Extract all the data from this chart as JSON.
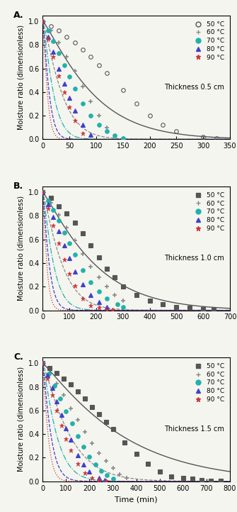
{
  "panels": [
    {
      "label": "A.",
      "thickness": "Thickness 0.5 cm",
      "xlim": [
        0,
        350
      ],
      "xticks": [
        0,
        50,
        100,
        150,
        200,
        250,
        300,
        350
      ],
      "temps": [
        {
          "label": "50 °C",
          "color": "#555555",
          "marker": "o",
          "marker_fill": "none",
          "linestyle": "-",
          "k": 0.0045,
          "n": 1.18,
          "data_t": [
            0,
            15,
            30,
            45,
            60,
            75,
            90,
            105,
            120,
            150,
            175,
            200,
            225,
            250,
            300,
            325
          ],
          "data_mr": [
            1.0,
            0.96,
            0.92,
            0.87,
            0.82,
            0.76,
            0.7,
            0.63,
            0.56,
            0.42,
            0.3,
            0.2,
            0.12,
            0.07,
            0.02,
            0.01
          ]
        },
        {
          "label": "60 °C",
          "color": "#888888",
          "marker": "+",
          "marker_fill": "none",
          "linestyle": "--",
          "k": 0.012,
          "n": 1.22,
          "data_t": [
            0,
            15,
            30,
            45,
            60,
            75,
            90,
            105,
            120
          ],
          "data_mr": [
            1.0,
            0.92,
            0.82,
            0.7,
            0.58,
            0.45,
            0.32,
            0.2,
            0.1
          ]
        },
        {
          "label": "70 °C",
          "color": "#20B2AA",
          "marker": "o",
          "marker_fill": "#20B2AA",
          "linestyle": "-.",
          "k": 0.022,
          "n": 1.25,
          "data_t": [
            0,
            10,
            20,
            30,
            40,
            50,
            60,
            75,
            90,
            105,
            120,
            135,
            150
          ],
          "data_mr": [
            1.0,
            0.92,
            0.83,
            0.73,
            0.63,
            0.53,
            0.43,
            0.3,
            0.2,
            0.12,
            0.07,
            0.03,
            0.01
          ]
        },
        {
          "label": "80 °C",
          "color": "#4040CC",
          "marker": "^",
          "marker_fill": "#4040CC",
          "linestyle": "--",
          "k": 0.038,
          "n": 1.28,
          "data_t": [
            0,
            10,
            20,
            30,
            40,
            50,
            60,
            75,
            90
          ],
          "data_mr": [
            1.0,
            0.87,
            0.74,
            0.6,
            0.47,
            0.35,
            0.24,
            0.12,
            0.04
          ]
        },
        {
          "label": "90 °C",
          "color": "#CC3333",
          "marker": "*",
          "marker_fill": "#CC3333",
          "linestyle": ":",
          "k": 0.055,
          "n": 1.3,
          "data_t": [
            0,
            10,
            20,
            30,
            40,
            50,
            60,
            75
          ],
          "data_mr": [
            1.0,
            0.85,
            0.7,
            0.54,
            0.4,
            0.27,
            0.16,
            0.05
          ]
        }
      ]
    },
    {
      "label": "B.",
      "thickness": "Thickness 1.0 cm",
      "xlim": [
        0,
        700
      ],
      "xticks": [
        0,
        100,
        200,
        300,
        400,
        500,
        600,
        700
      ],
      "temps": [
        {
          "label": "50 °C",
          "color": "#555555",
          "marker": "s",
          "marker_fill": "#555555",
          "linestyle": "-",
          "k": 0.0022,
          "n": 1.15,
          "data_t": [
            0,
            30,
            60,
            90,
            120,
            150,
            180,
            210,
            240,
            270,
            300,
            350,
            400,
            450,
            500,
            550,
            600,
            640
          ],
          "data_mr": [
            1.0,
            0.95,
            0.88,
            0.82,
            0.74,
            0.65,
            0.55,
            0.45,
            0.35,
            0.28,
            0.2,
            0.13,
            0.08,
            0.05,
            0.03,
            0.02,
            0.01,
            0.005
          ]
        },
        {
          "label": "60 °C",
          "color": "#888888",
          "marker": "+",
          "marker_fill": "none",
          "linestyle": "--",
          "k": 0.006,
          "n": 1.18,
          "data_t": [
            0,
            30,
            60,
            90,
            120,
            150,
            180,
            210,
            240,
            270,
            300
          ],
          "data_mr": [
            1.0,
            0.91,
            0.81,
            0.7,
            0.59,
            0.48,
            0.37,
            0.28,
            0.2,
            0.13,
            0.08
          ]
        },
        {
          "label": "70 °C",
          "color": "#20B2AA",
          "marker": "o",
          "marker_fill": "#20B2AA",
          "linestyle": "-.",
          "k": 0.011,
          "n": 1.2,
          "data_t": [
            0,
            20,
            40,
            60,
            80,
            100,
            120,
            150,
            180,
            210,
            240,
            280,
            300
          ],
          "data_mr": [
            1.0,
            0.93,
            0.85,
            0.76,
            0.66,
            0.57,
            0.47,
            0.34,
            0.24,
            0.16,
            0.1,
            0.05,
            0.03
          ]
        },
        {
          "label": "80 °C",
          "color": "#4040CC",
          "marker": "^",
          "marker_fill": "#4040CC",
          "linestyle": "--",
          "k": 0.019,
          "n": 1.22,
          "data_t": [
            0,
            20,
            40,
            60,
            80,
            100,
            120,
            150,
            180,
            210,
            240
          ],
          "data_mr": [
            1.0,
            0.9,
            0.79,
            0.67,
            0.55,
            0.44,
            0.33,
            0.22,
            0.13,
            0.07,
            0.03
          ]
        },
        {
          "label": "90 °C",
          "color": "#CC3333",
          "marker": "*",
          "marker_fill": "#CC3333",
          "linestyle": ":",
          "k": 0.03,
          "n": 1.25,
          "data_t": [
            0,
            20,
            40,
            60,
            80,
            100,
            120,
            150,
            180,
            210,
            240,
            260
          ],
          "data_mr": [
            1.0,
            0.86,
            0.72,
            0.57,
            0.43,
            0.31,
            0.21,
            0.1,
            0.04,
            0.02,
            0.005,
            0.002
          ]
        }
      ]
    },
    {
      "label": "C.",
      "thickness": "Thickness 1.5 cm",
      "xlim": [
        0,
        800
      ],
      "xticks": [
        0,
        100,
        200,
        300,
        400,
        500,
        600,
        700,
        800
      ],
      "temps": [
        {
          "label": "50 °C",
          "color": "#555555",
          "marker": "s",
          "marker_fill": "#555555",
          "linestyle": "-",
          "k": 0.0014,
          "n": 1.12,
          "data_t": [
            0,
            30,
            60,
            90,
            120,
            150,
            180,
            210,
            240,
            270,
            300,
            350,
            400,
            450,
            500,
            550,
            600,
            640,
            680,
            720,
            760
          ],
          "data_mr": [
            1.0,
            0.96,
            0.92,
            0.87,
            0.82,
            0.76,
            0.7,
            0.63,
            0.57,
            0.5,
            0.44,
            0.33,
            0.23,
            0.15,
            0.08,
            0.04,
            0.03,
            0.02,
            0.01,
            0.005,
            0.002
          ]
        },
        {
          "label": "60 °C",
          "color": "#888888",
          "marker": "+",
          "marker_fill": "none",
          "linestyle": "--",
          "k": 0.004,
          "n": 1.15,
          "data_t": [
            0,
            30,
            60,
            90,
            120,
            150,
            180,
            210,
            240,
            270,
            300,
            330,
            360
          ],
          "data_mr": [
            1.0,
            0.92,
            0.83,
            0.73,
            0.62,
            0.52,
            0.42,
            0.32,
            0.24,
            0.17,
            0.11,
            0.06,
            0.03
          ]
        },
        {
          "label": "70 °C",
          "color": "#20B2AA",
          "marker": "o",
          "marker_fill": "#20B2AA",
          "linestyle": "-.",
          "k": 0.0075,
          "n": 1.18,
          "data_t": [
            0,
            25,
            50,
            75,
            100,
            125,
            150,
            175,
            200,
            225,
            250,
            275,
            300
          ],
          "data_mr": [
            1.0,
            0.91,
            0.81,
            0.7,
            0.59,
            0.49,
            0.38,
            0.29,
            0.21,
            0.14,
            0.09,
            0.05,
            0.02
          ]
        },
        {
          "label": "80 °C",
          "color": "#4040CC",
          "marker": "^",
          "marker_fill": "#4040CC",
          "linestyle": "--",
          "k": 0.013,
          "n": 1.2,
          "data_t": [
            0,
            20,
            40,
            60,
            80,
            100,
            120,
            150,
            175,
            200,
            240,
            265
          ],
          "data_mr": [
            1.0,
            0.9,
            0.79,
            0.68,
            0.56,
            0.45,
            0.35,
            0.22,
            0.14,
            0.08,
            0.03,
            0.01
          ]
        },
        {
          "label": "90 °C",
          "color": "#CC3333",
          "marker": "*",
          "marker_fill": "#CC3333",
          "linestyle": ":",
          "k": 0.02,
          "n": 1.22,
          "data_t": [
            0,
            20,
            40,
            60,
            80,
            100,
            120,
            150,
            180,
            210,
            240,
            270
          ],
          "data_mr": [
            1.0,
            0.87,
            0.73,
            0.6,
            0.47,
            0.36,
            0.26,
            0.15,
            0.07,
            0.03,
            0.01,
            0.005
          ]
        }
      ]
    }
  ],
  "ylabel": "Moisture ratio (dimensionless)",
  "xlabel": "Time (min)",
  "bg_color": "#f5f5f0",
  "legend_markers_A": [
    "o",
    "+",
    "o",
    "^",
    "*"
  ],
  "legend_colors": [
    "#555555",
    "#888888",
    "#20B2AA",
    "#4040CC",
    "#CC3333"
  ],
  "legend_fills_A": [
    "none",
    "none",
    "#20B2AA",
    "#4040CC",
    "#CC3333"
  ],
  "legend_markers_BC": [
    "s",
    "+",
    "o",
    "^",
    "*"
  ],
  "legend_fills_BC": [
    "#555555",
    "none",
    "#20B2AA",
    "#4040CC",
    "#CC3333"
  ]
}
